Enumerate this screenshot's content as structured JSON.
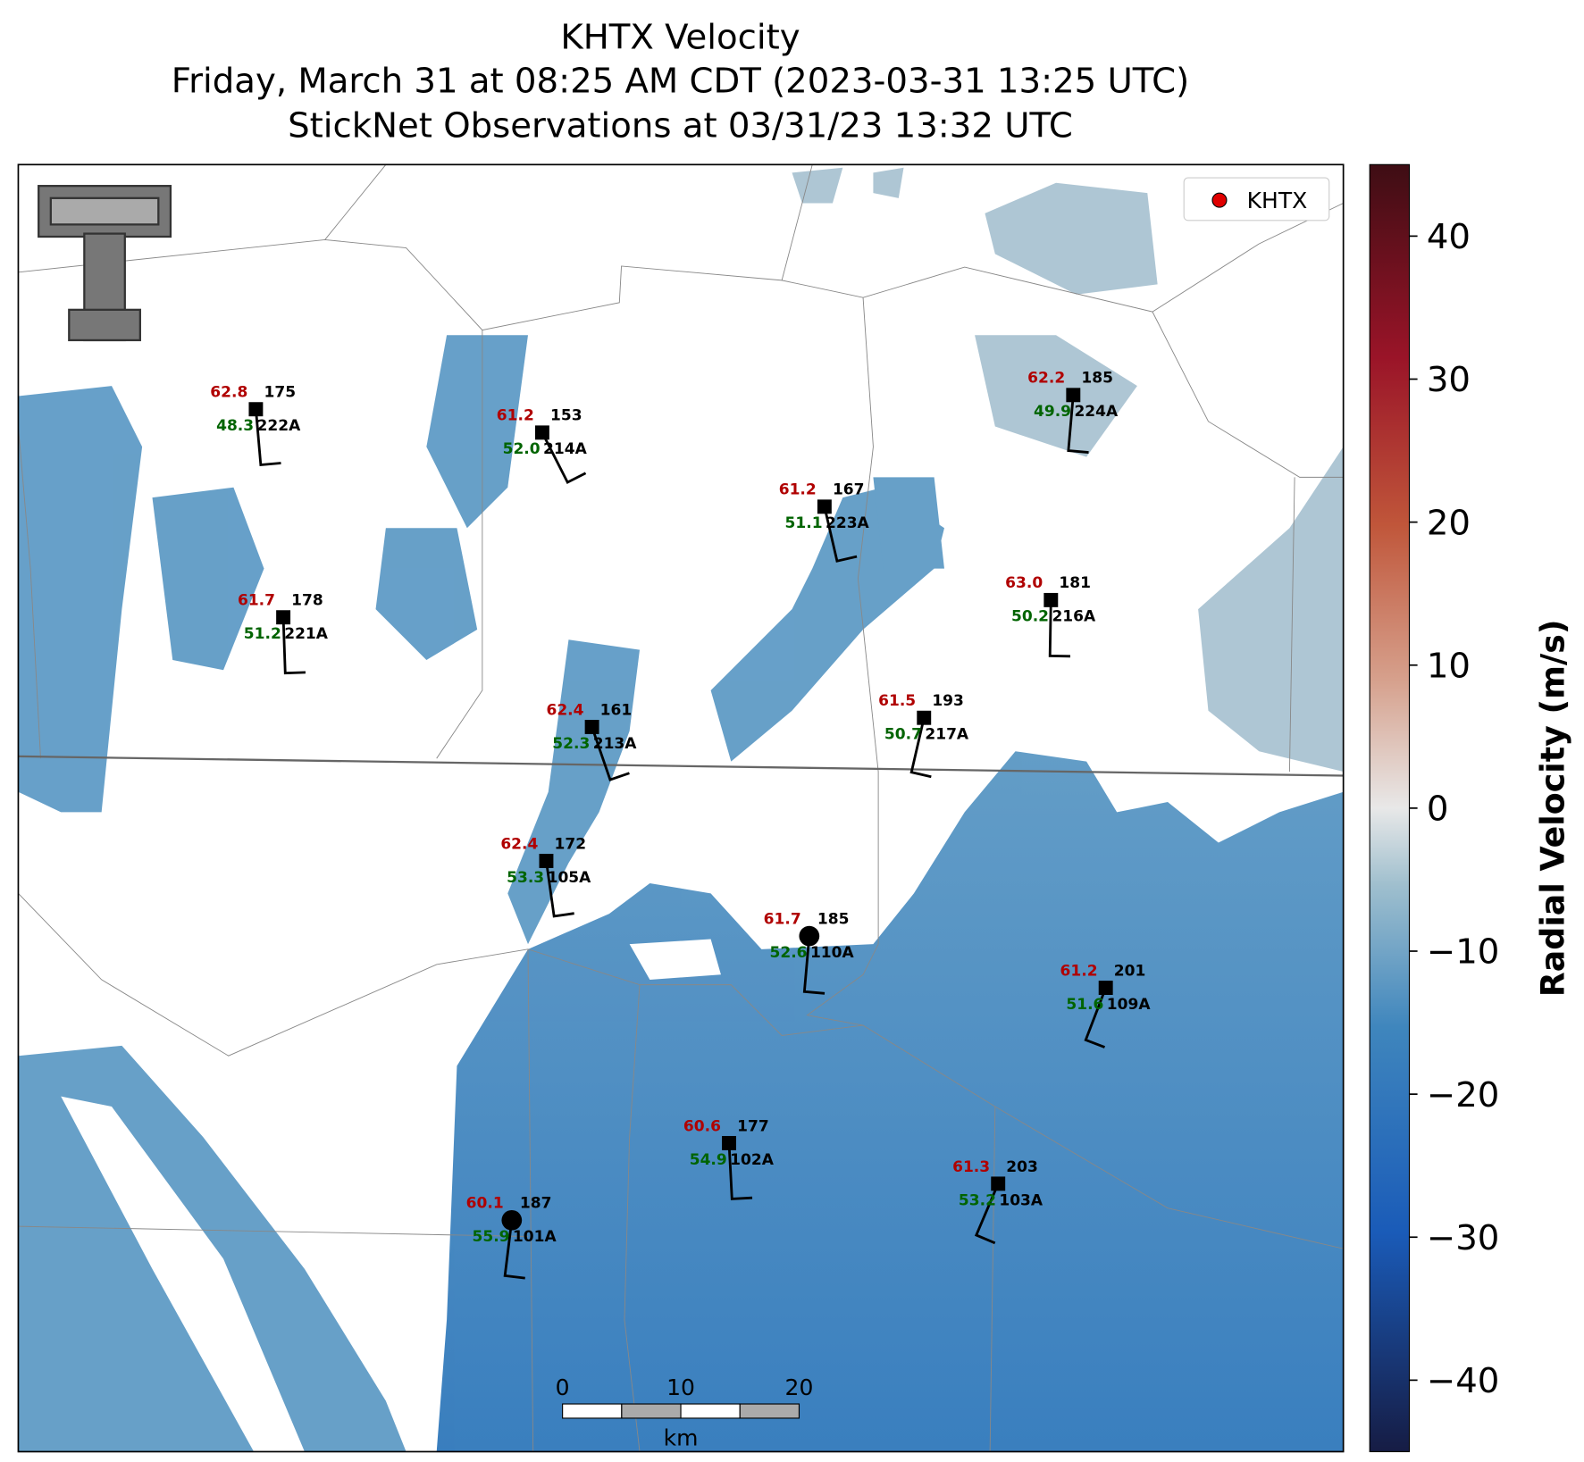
{
  "title": {
    "lines": [
      "KHTX Velocity",
      "Friday, March 31 at 08:25 AM CDT (2023-03-31 13:25 UTC)",
      "StickNet Observations at 03/31/23 13:32 UTC"
    ]
  },
  "legend": {
    "label": "KHTX"
  },
  "stations": [
    {
      "id": "222A",
      "temperature": "62.8",
      "dewpoint": "48.3",
      "direction": 175
    },
    {
      "id": "214A",
      "temperature": "61.2",
      "dewpoint": "52.0",
      "direction": 153
    },
    {
      "id": "223A",
      "temperature": "61.2",
      "dewpoint": "51.1",
      "direction": 167
    },
    {
      "id": "224A",
      "temperature": "62.2",
      "dewpoint": "49.9",
      "direction": 185
    },
    {
      "id": "221A",
      "temperature": "61.7",
      "dewpoint": "51.2",
      "direction": 178
    },
    {
      "id": "216A",
      "temperature": "63.0",
      "dewpoint": "50.2",
      "direction": 181
    },
    {
      "id": "213A",
      "temperature": "62.4",
      "dewpoint": "52.3",
      "direction": 161
    },
    {
      "id": "217A",
      "temperature": "61.5",
      "dewpoint": "50.7",
      "direction": 193
    },
    {
      "id": "105A",
      "temperature": "62.4",
      "dewpoint": "53.3",
      "direction": 172
    },
    {
      "id": "110A",
      "temperature": "61.7",
      "dewpoint": "52.6",
      "direction": 185
    },
    {
      "id": "109A",
      "temperature": "61.2",
      "dewpoint": "51.6",
      "direction": 201
    },
    {
      "id": "102A",
      "temperature": "60.6",
      "dewpoint": "54.9",
      "direction": 177
    },
    {
      "id": "103A",
      "temperature": "61.3",
      "dewpoint": "53.2",
      "direction": 203
    },
    {
      "id": "101A",
      "temperature": "60.1",
      "dewpoint": "55.9",
      "direction": 187
    }
  ],
  "scalebar": {
    "ticks": [
      0,
      10,
      20
    ],
    "unit": "km"
  },
  "colorbar": {
    "label": "Radial Velocity (m/s)",
    "lim": [
      -45,
      45
    ],
    "ticks": [
      {
        "value": -40,
        "label": "−40"
      },
      {
        "value": -30,
        "label": "−30"
      },
      {
        "value": -20,
        "label": "−20"
      },
      {
        "value": -10,
        "label": "−10"
      },
      0,
      10,
      20,
      30,
      40
    ]
  }
}
